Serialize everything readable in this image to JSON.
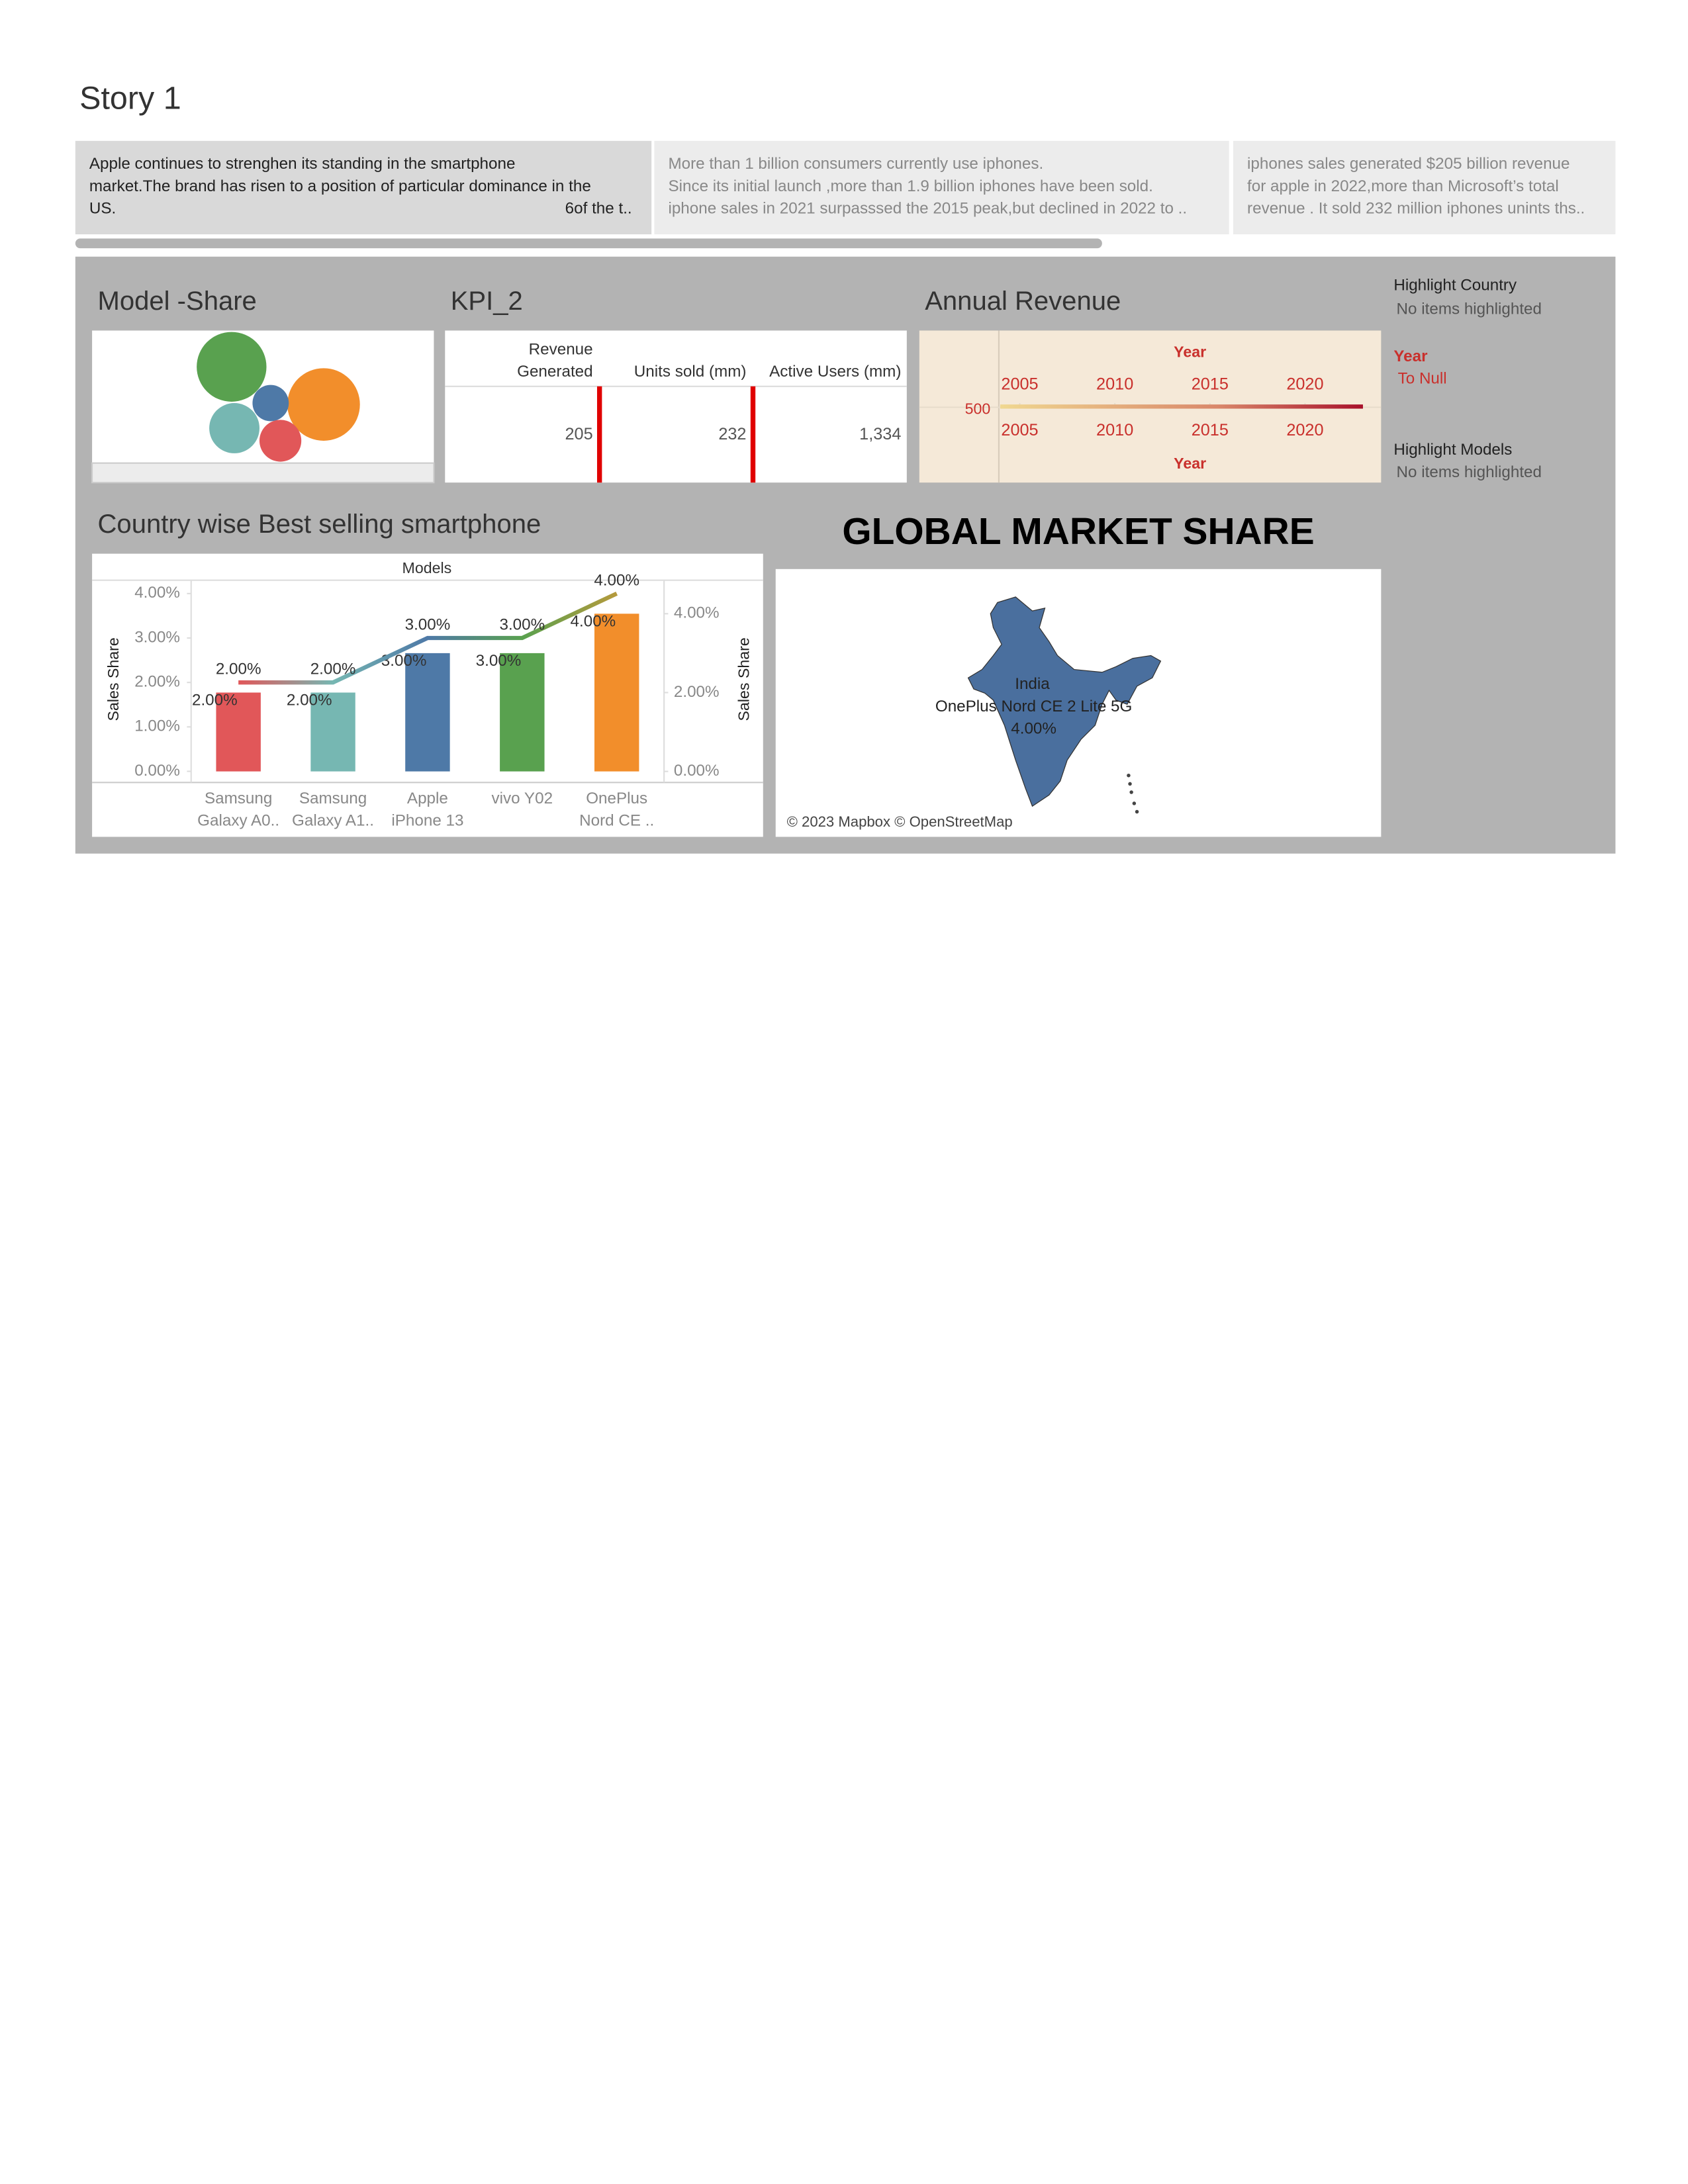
{
  "story_title": "Story 1",
  "story_points": [
    {
      "lines": [
        "Apple continues to strenghen its standing in the smartphone",
        "market.The brand has risen to a position of particular dominance in the",
        "US."
      ],
      "tail": "6of the t.."
    },
    {
      "lines": [
        "More than 1 billion consumers currently use iphones.",
        "Since its initial launch ,more than 1.9 billion iphones have been sold.",
        "iphone sales in 2021 surpasssed the 2015 peak,but declined in 2022 to .."
      ]
    },
    {
      "lines": [
        "iphones sales generated $205 billion revenue",
        "for apple in 2022,more than Microsoft’s total",
        "revenue . It sold 232 million iphones unints ths.."
      ]
    }
  ],
  "model_share": {
    "title": "Model -Share",
    "values": [
      6.25,
      6.76,
      1.69,
      3.24,
      2.25
    ],
    "colors": [
      "#59a14f",
      "#f28e2b",
      "#4e79a7",
      "#76b7b2",
      "#e15759"
    ]
  },
  "kpi": {
    "title": "KPI_2",
    "headers": [
      "Revenue Generated",
      "Units sold (mm)",
      "Active Users (mm)"
    ],
    "values": [
      205,
      232,
      1334
    ],
    "value_labels": [
      "205",
      "232",
      "1,334"
    ],
    "bar_color": "#e00000"
  },
  "annual_revenue": {
    "title": "Annual Revenue",
    "x_title": "Year",
    "xlim": [
      2003.9,
      2024
    ],
    "xticks": [
      2005,
      2010,
      2015,
      2020
    ],
    "yticks": [
      500
    ]
  },
  "highlight_country": {
    "title": "Highlight Country",
    "status": "No items highlighted"
  },
  "year_filter": {
    "title": "Year",
    "value": "To Null"
  },
  "highlight_models": {
    "title": "Highlight Models",
    "status": "No items highlighted"
  },
  "country_chart": {
    "type": "bar",
    "title": "Country wise Best selling smartphone",
    "header": "Models",
    "ylabel": "Sales Share",
    "y2label": "Sales Share",
    "categories": [
      "Samsung Galaxy A0..",
      "Samsung Galaxy A1..",
      "Apple iPhone 13",
      "vivo Y02",
      "OnePlus Nord CE .."
    ],
    "series": [
      {
        "kind": "bar",
        "axis": "y2",
        "colors": [
          "#e15759",
          "#76b7b2",
          "#4e79a7",
          "#59a14f",
          "#f28e2b"
        ],
        "values": [
          2,
          2,
          3,
          3,
          4
        ],
        "value_labels": [
          "2.00%",
          "2.00%",
          "3.00%",
          "3.00%",
          "4.00%"
        ]
      },
      {
        "kind": "line",
        "axis": "y",
        "colors": [
          "#e15759",
          "#76b7b2",
          "#4e79a7",
          "#59a14f",
          "#b59a3c"
        ],
        "values": [
          2,
          2,
          3,
          3,
          4
        ],
        "value_labels": [
          "2.00%",
          "2.00%",
          "3.00%",
          "3.00%",
          "4.00%"
        ]
      }
    ],
    "ylim": [
      -0.25,
      4.3
    ],
    "yticks": [
      {
        "value": 0,
        "label": "0.00%"
      },
      {
        "value": 1,
        "label": "1.00%"
      },
      {
        "value": 2,
        "label": "2.00%"
      },
      {
        "value": 3,
        "label": "3.00%"
      },
      {
        "value": 4,
        "label": "4.00%"
      }
    ],
    "y2lim": [
      -0.28,
      4.85
    ],
    "y2ticks": [
      {
        "value": 0,
        "label": "0.00%"
      },
      {
        "value": 2,
        "label": "2.00%"
      },
      {
        "value": 4,
        "label": "4.00%"
      }
    ]
  },
  "market_map": {
    "title": "GLOBAL MARKET SHARE",
    "country": "India",
    "model": "OnePlus Nord CE 2 Lite 5G",
    "value": 4,
    "value_label": "4.00%",
    "attribution": "© 2023 Mapbox © OpenStreetMap",
    "color": "#4a6f9e"
  }
}
